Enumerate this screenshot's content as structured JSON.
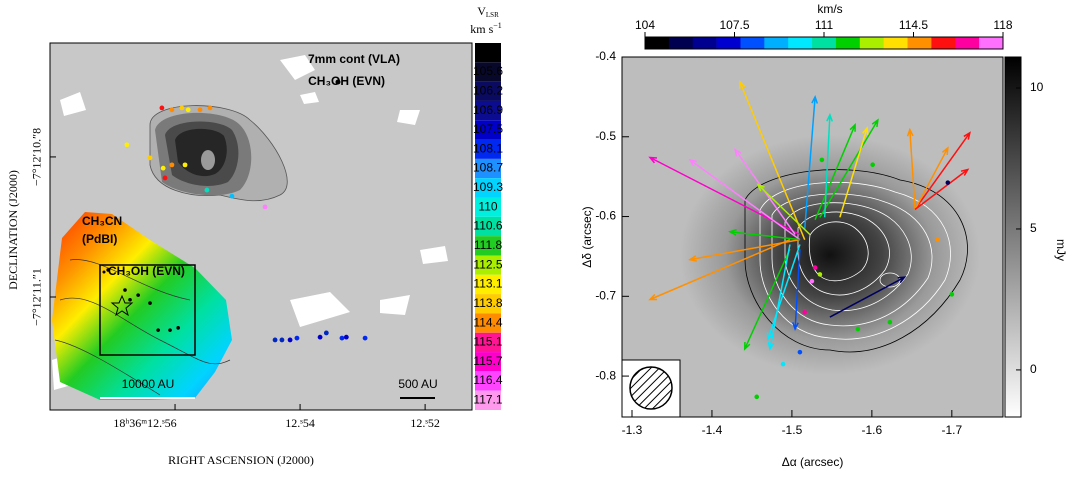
{
  "chart_data": [
    {
      "type": "scatter",
      "xlabel": "RIGHT ASCENSION (J2000)",
      "ylabel": "DECLINATION (J2000)",
      "xlim": [
        12.58,
        12.5125
      ],
      "ylim": [
        -11.342,
        -10.556
      ],
      "xticks": [
        {
          "value": 12.56,
          "label": "18ʰ36ᵐ12.ˢ56"
        },
        {
          "value": 12.54,
          "label": "12.ˢ54"
        },
        {
          "value": 12.52,
          "label": "12.ˢ52"
        }
      ],
      "yticks": [
        {
          "value": -10.8,
          "label": "−7°12′10.″8"
        },
        {
          "value": -11.1,
          "label": "−7°12′11.″1"
        }
      ],
      "annotations": [
        "7mm cont (VLA)",
        "CH₃OH (EVN)",
        "CH₃CN",
        "(PdBI)",
        "CH₃OH (EVN)",
        "10000 AU",
        "500 AU"
      ],
      "colorbar": {
        "title": "V",
        "title_sub": "LSR",
        "unit": "km s",
        "unit_exp": "−1",
        "ticks": [
          105,
          105.6,
          106.2,
          106.9,
          107.5,
          108.1,
          108.7,
          109.3,
          110,
          110.6,
          111.8,
          112.5,
          113.1,
          113.8,
          114.4,
          115.1,
          115.7,
          116.4,
          117.1
        ],
        "colors": [
          "#000000",
          "#08082a",
          "#0a0a60",
          "#0c0c90",
          "#0000c8",
          "#0028f0",
          "#1e90ff",
          "#00d4ff",
          "#00f0e0",
          "#00e0a0",
          "#22cc22",
          "#aaee00",
          "#ffee00",
          "#ffcc00",
          "#ff8c00",
          "#ff1493",
          "#ff00cc",
          "#ff44ff",
          "#ff99ee"
        ]
      },
      "points": {
        "x": [
          12.5621,
          12.5605,
          12.5589,
          12.5579,
          12.556,
          12.5544,
          12.5677,
          12.564,
          12.5619,
          12.5605,
          12.5584,
          12.5616,
          12.5549,
          12.5509,
          12.5456,
          12.544,
          12.5429,
          12.5416,
          12.5405,
          12.5368,
          12.5358,
          12.5333,
          12.5326,
          12.5296,
          12.568,
          12.5672,
          12.5659,
          12.564,
          12.5627,
          12.5608,
          12.5595,
          12.5707
        ],
        "y": [
          -10.695,
          -10.699,
          -10.695,
          -10.699,
          -10.699,
          -10.695,
          -10.774,
          -10.802,
          -10.824,
          -10.817,
          -10.817,
          -10.845,
          -10.871,
          -10.884,
          -10.907,
          -11.192,
          -11.192,
          -11.192,
          -11.188,
          -11.186,
          -11.177,
          -11.188,
          -11.186,
          -11.188,
          -11.085,
          -11.106,
          -11.096,
          -11.113,
          -11.171,
          -11.171,
          -11.166,
          -11.042
        ],
        "colors": [
          "#ff1010",
          "#ff8c00",
          "#ffcc00",
          "#ffee00",
          "#ff8c00",
          "#ff8c00",
          "#ffee00",
          "#ffcc00",
          "#ffee00",
          "#ff8c00",
          "#ffee00",
          "#ff1010",
          "#00e0c0",
          "#00c0ff",
          "#ff80ff",
          "#0028c0",
          "#0028c0",
          "#0000c8",
          "#0028f0",
          "#0000c8",
          "#0028c0",
          "#0028f0",
          "#0000c8",
          "#0028f0",
          "#000000",
          "#000000",
          "#000000",
          "#000000",
          "#000000",
          "#000000",
          "#000000",
          "#000000"
        ]
      }
    },
    {
      "type": "vector",
      "xlabel": "Δα (arcsec)",
      "ylabel": "Δδ (arcsec)",
      "xlim": [
        -1.2875,
        -1.764
      ],
      "ylim": [
        -0.8513,
        -0.4
      ],
      "xticks": [
        -1.3,
        -1.4,
        -1.5,
        -1.6,
        -1.7
      ],
      "yticks": [
        -0.4,
        -0.5,
        -0.6,
        -0.7,
        -0.8
      ],
      "colorbar": {
        "title": "km/s",
        "lim": [
          104,
          118
        ],
        "ticks": [
          104,
          107.5,
          111,
          114.5,
          118
        ],
        "colors": [
          "#000000",
          "#000050",
          "#000090",
          "#0000d0",
          "#0050ff",
          "#00b0ff",
          "#00e8ff",
          "#00e0a0",
          "#00d000",
          "#aaee00",
          "#ffe000",
          "#ff9000",
          "#ff1010",
          "#ff00a0",
          "#ff70ff"
        ]
      },
      "intensity_bar": {
        "label": "mJy",
        "lim": [
          -1.67,
          11.1
        ],
        "ticks": [
          0,
          5,
          10
        ]
      },
      "arrows": {
        "x": [
          -1.516,
          -1.516,
          -1.51,
          -1.51,
          -1.504,
          -1.5225,
          -1.535,
          -1.529,
          -1.541,
          -1.654,
          -1.654,
          -1.654,
          -1.654,
          -1.56,
          -1.4975,
          -1.51,
          -1.51,
          -1.5475,
          -1.4975,
          -1.4975,
          -1.51,
          -1.51
        ],
        "y": [
          -0.629,
          -0.616,
          -0.6225,
          -0.629,
          -0.6225,
          -0.6225,
          -0.601,
          -0.604,
          -0.601,
          -0.591,
          -0.591,
          -0.591,
          -0.591,
          -0.601,
          -0.629,
          -0.629,
          -0.629,
          -0.726,
          -0.641,
          -0.635,
          -0.635,
          -0.641
        ],
        "x2": [
          -1.435,
          -1.529,
          -1.3225,
          -1.3725,
          -1.429,
          -1.4575,
          -1.6075,
          -1.579,
          -1.5475,
          -1.7225,
          -1.695,
          -1.6475,
          -1.72,
          -1.594,
          -1.3225,
          -1.3725,
          -1.4225,
          -1.641,
          -1.441,
          -1.4725,
          -1.47,
          -1.504
        ],
        "y2": [
          -0.431,
          -0.45,
          -0.526,
          -0.529,
          -0.516,
          -0.56,
          -0.479,
          -0.485,
          -0.4725,
          -0.495,
          -0.514,
          -0.491,
          -0.541,
          -0.489,
          -0.704,
          -0.654,
          -0.619,
          -0.676,
          -0.766,
          -0.766,
          -0.754,
          -0.741
        ],
        "colors": [
          "#ffcc00",
          "#00a0ff",
          "#ff00cc",
          "#ff80ff",
          "#ff80ff",
          "#aaee00",
          "#00d000",
          "#00d000",
          "#00e0c0",
          "#ff1010",
          "#ff9000",
          "#ff9000",
          "#ff1010",
          "#ffe000",
          "#ff9000",
          "#ff9000",
          "#00d000",
          "#000060",
          "#00d000",
          "#00e8ff",
          "#00e8ff",
          "#0050ff"
        ]
      },
      "points": {
        "x": [
          -1.5375,
          -1.601,
          -1.695,
          -1.6825,
          -1.7,
          -1.6225,
          -1.5825,
          -1.516,
          -1.51,
          -1.489,
          -1.456,
          -1.529,
          -1.535,
          -1.525
        ],
        "y": [
          -0.529,
          -0.535,
          -0.5575,
          -0.629,
          -0.6975,
          -0.7325,
          -0.741,
          -0.72,
          -0.77,
          -0.785,
          -0.826,
          -0.664,
          -0.6725,
          -0.681
        ],
        "colors": [
          "#00d000",
          "#00d000",
          "#000060",
          "#ff9000",
          "#00d000",
          "#00d000",
          "#00d000",
          "#ff00a0",
          "#0050ff",
          "#00e8ff",
          "#00d000",
          "#ff00a0",
          "#aaee00",
          "#ff70ff"
        ]
      }
    }
  ]
}
